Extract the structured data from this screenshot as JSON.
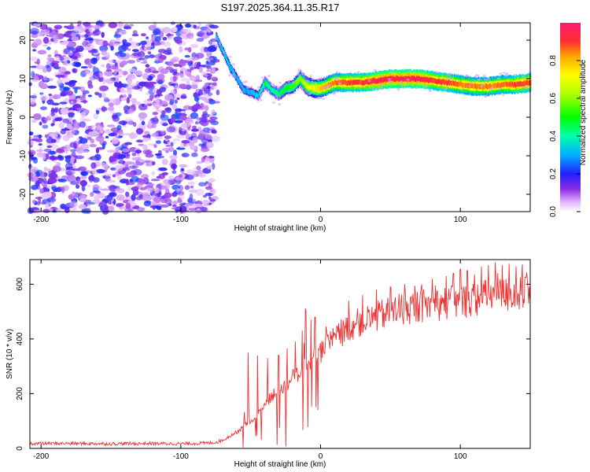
{
  "title": "S197.2025.364.11.35.R17",
  "chart_data": [
    {
      "type": "heatmap",
      "name": "spectrogram",
      "xlabel": "Height of straight line (km)",
      "ylabel": "Frequency (Hz)",
      "xlim": [
        -208,
        150
      ],
      "ylim": [
        -24.5,
        24.5
      ],
      "xticks": [
        -200,
        -100,
        0,
        100
      ],
      "yticks": [
        -20,
        -10,
        0,
        10,
        20
      ],
      "noise_region_x": [
        -208,
        -75
      ],
      "ridge": {
        "x": [
          -75,
          -70,
          -65,
          -60,
          -55,
          -50,
          -45,
          -40,
          -35,
          -30,
          -25,
          -20,
          -15,
          -10,
          -5,
          0,
          10,
          20,
          30,
          40,
          50,
          60,
          70,
          80,
          90,
          100,
          110,
          120,
          130,
          140,
          150
        ],
        "frequency": [
          21,
          17,
          13,
          10,
          7,
          6.5,
          5.5,
          9,
          7,
          6,
          7.5,
          8,
          10,
          8,
          7.5,
          7.5,
          9,
          9,
          9,
          9.5,
          10,
          10,
          10,
          9.5,
          9,
          8.5,
          8,
          8,
          8.5,
          8.5,
          9
        ],
        "amplitude": [
          0.3,
          0.35,
          0.35,
          0.3,
          0.3,
          0.3,
          0.35,
          0.45,
          0.4,
          0.45,
          0.5,
          0.55,
          0.6,
          0.7,
          0.75,
          0.8,
          0.85,
          0.9,
          0.9,
          0.95,
          0.95,
          0.95,
          0.95,
          0.9,
          0.9,
          0.85,
          0.85,
          0.85,
          0.85,
          0.9,
          0.9
        ]
      },
      "colorbar": {
        "label": "Normalized spectral amplitude",
        "range": [
          0,
          1
        ],
        "ticks": [
          "0.0",
          "0.2",
          "0.4",
          "0.6",
          "0.8"
        ],
        "tick_values": [
          0,
          0.2,
          0.4,
          0.6,
          0.8
        ]
      }
    },
    {
      "type": "line",
      "name": "snr",
      "xlabel": "Height of straight line (km)",
      "ylabel": "SNR (10 * v/v)",
      "xlim": [
        -208,
        150
      ],
      "ylim": [
        0,
        690
      ],
      "xticks": [
        -200,
        -100,
        0,
        100
      ],
      "yticks": [
        0,
        200,
        400,
        600
      ],
      "color": "#ee3333",
      "series": [
        {
          "name": "SNR",
          "x": [
            -208,
            -180,
            -150,
            -120,
            -100,
            -90,
            -80,
            -75,
            -70,
            -65,
            -60,
            -55,
            -50,
            -45,
            -40,
            -35,
            -30,
            -25,
            -20,
            -15,
            -10,
            -5,
            0,
            5,
            10,
            15,
            20,
            25,
            30,
            40,
            50,
            60,
            70,
            80,
            90,
            100,
            110,
            120,
            130,
            140,
            150
          ],
          "y": [
            18,
            18,
            17,
            18,
            17,
            18,
            20,
            22,
            30,
            45,
            60,
            80,
            100,
            130,
            160,
            190,
            210,
            230,
            260,
            280,
            300,
            330,
            350,
            380,
            400,
            420,
            440,
            455,
            465,
            480,
            500,
            510,
            520,
            525,
            530,
            535,
            545,
            555,
            560,
            565,
            560
          ]
        }
      ],
      "spikes": {
        "x": [
          -52,
          -45,
          -38,
          -30,
          -24,
          -18,
          -13,
          -7,
          -4,
          20,
          30,
          40,
          50,
          60,
          70,
          80,
          90,
          95,
          100,
          105,
          110,
          115,
          120,
          125,
          130,
          135,
          140
        ],
        "y": [
          350,
          340,
          330,
          340,
          365,
          390,
          430,
          470,
          480,
          540,
          560,
          580,
          590,
          600,
          610,
          620,
          630,
          640,
          655,
          650,
          660,
          665,
          670,
          680,
          670,
          675,
          665
        ]
      }
    }
  ]
}
